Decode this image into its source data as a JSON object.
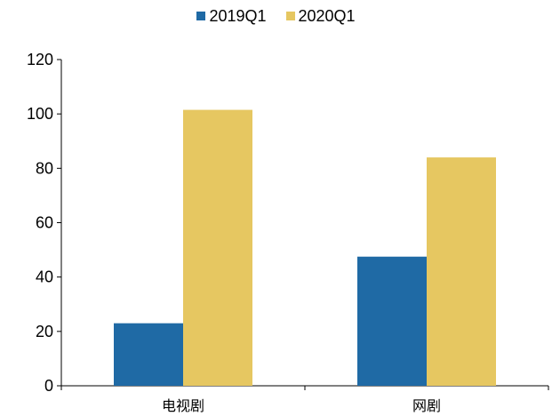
{
  "chart_data": {
    "type": "bar",
    "title": "",
    "xlabel": "",
    "ylabel": "",
    "categories": [
      "电视剧",
      "网剧"
    ],
    "series": [
      {
        "name": "2019Q1",
        "values": [
          23,
          47.5
        ],
        "color": "#1f6aa5"
      },
      {
        "name": "2020Q1",
        "values": [
          101.5,
          84
        ],
        "color": "#e6c761"
      }
    ],
    "ylim": [
      0,
      120
    ],
    "yticks": [
      0,
      20,
      40,
      60,
      80,
      100,
      120
    ],
    "grid": false,
    "legend_position": "top-center"
  }
}
